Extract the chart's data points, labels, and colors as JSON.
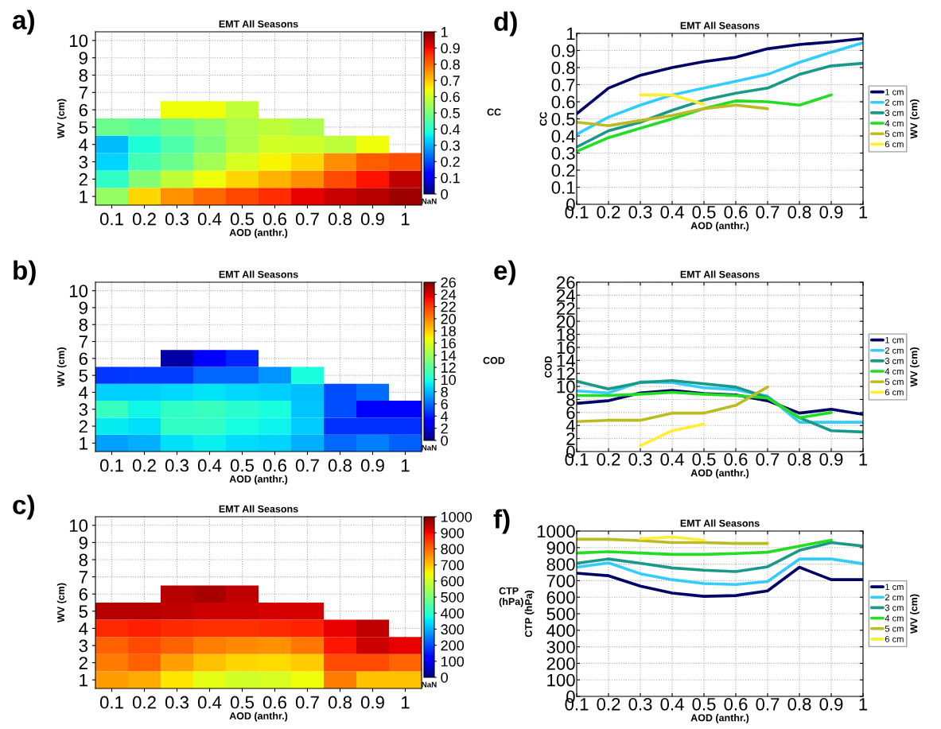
{
  "chart_data": [
    {
      "type": "heatmap",
      "title": "EMT All Seasons",
      "xlabel": "AOD (anthr.)",
      "ylabel": "WV (cm)",
      "clabel": "CC",
      "annotations": [
        "a)",
        "NaN"
      ],
      "grid": true,
      "categories": [
        "0.1",
        "0.2",
        "0.3",
        "0.4",
        "0.5",
        "0.6",
        "0.7",
        "0.8",
        "0.9",
        "1"
      ],
      "y_categories": [
        "10",
        "9",
        "8",
        "7",
        "6",
        "5",
        "4",
        "3",
        "2",
        "1"
      ],
      "cells": [
        [
          null,
          null,
          null,
          null,
          null,
          null,
          null,
          null,
          null,
          null
        ],
        [
          null,
          null,
          null,
          null,
          null,
          null,
          null,
          null,
          null,
          null
        ],
        [
          null,
          null,
          null,
          null,
          null,
          null,
          null,
          null,
          null,
          null
        ],
        [
          null,
          null,
          null,
          null,
          null,
          null,
          null,
          null,
          null,
          null
        ],
        [
          null,
          null,
          0.64,
          0.64,
          0.585,
          null,
          null,
          null,
          null,
          null
        ],
        [
          0.48,
          0.46,
          0.49,
          0.52,
          0.56,
          0.58,
          0.56,
          null,
          null,
          null
        ],
        [
          0.31,
          0.39,
          0.445,
          0.5,
          0.56,
          0.605,
          0.6,
          0.58,
          0.64,
          null
        ],
        [
          0.335,
          0.43,
          0.48,
          0.55,
          0.61,
          0.65,
          0.68,
          0.76,
          0.81,
          0.825
        ],
        [
          0.41,
          0.51,
          0.58,
          0.64,
          0.68,
          0.72,
          0.76,
          0.83,
          0.89,
          0.945
        ],
        [
          0.53,
          0.68,
          0.755,
          0.8,
          0.835,
          0.86,
          0.91,
          0.935,
          0.95,
          0.97
        ]
      ],
      "clim": [
        0,
        1
      ],
      "cticks": [
        0,
        0.1,
        0.2,
        0.3,
        0.4,
        0.5,
        0.6,
        0.7,
        0.8,
        0.9,
        1
      ]
    },
    {
      "type": "line",
      "title": "EMT All Seasons",
      "xlabel": "AOD (anthr.)",
      "ylabel": "CC",
      "legend_title": "WV (cm)",
      "annotations": [
        "d)"
      ],
      "grid": true,
      "legend": "right",
      "x": [
        0.1,
        0.2,
        0.3,
        0.4,
        0.5,
        0.6,
        0.7,
        0.8,
        0.9,
        1
      ],
      "xlim": [
        0.1,
        1
      ],
      "xticks": [
        0.1,
        0.2,
        0.3,
        0.4,
        0.5,
        0.6,
        0.7,
        0.8,
        0.9,
        1
      ],
      "ylim": [
        0,
        1
      ],
      "yticks": [
        0,
        0.1,
        0.2,
        0.3,
        0.4,
        0.5,
        0.6,
        0.7,
        0.8,
        0.9,
        1
      ],
      "series": [
        {
          "name": "1 cm",
          "color": "#000066",
          "values": [
            0.53,
            0.68,
            0.755,
            0.8,
            0.835,
            0.86,
            0.91,
            0.935,
            0.95,
            0.97
          ]
        },
        {
          "name": "2 cm",
          "color": "#33ccff",
          "values": [
            0.41,
            0.51,
            0.58,
            0.64,
            0.68,
            0.72,
            0.76,
            0.83,
            0.89,
            0.945
          ]
        },
        {
          "name": "3 cm",
          "color": "#1a9988",
          "values": [
            0.335,
            0.43,
            0.48,
            0.55,
            0.61,
            0.65,
            0.68,
            0.76,
            0.81,
            0.825
          ]
        },
        {
          "name": "4 cm",
          "color": "#22dd22",
          "values": [
            0.31,
            0.39,
            0.445,
            0.5,
            0.56,
            0.605,
            0.6,
            0.58,
            0.64,
            null
          ]
        },
        {
          "name": "5 cm",
          "color": "#bbbb22",
          "values": [
            0.48,
            0.46,
            0.49,
            0.52,
            0.56,
            0.58,
            0.56,
            null,
            null,
            null
          ]
        },
        {
          "name": "6 cm",
          "color": "#ffee33",
          "values": [
            null,
            null,
            0.64,
            0.64,
            0.585,
            null,
            null,
            null,
            null,
            null
          ]
        }
      ]
    },
    {
      "type": "heatmap",
      "title": "EMT All Seasons",
      "xlabel": "AOD (anthr.)",
      "ylabel": "WV (cm)",
      "clabel": "COD",
      "annotations": [
        "b)",
        "NaN"
      ],
      "grid": true,
      "categories": [
        "0.1",
        "0.2",
        "0.3",
        "0.4",
        "0.5",
        "0.6",
        "0.7",
        "0.8",
        "0.9",
        "1"
      ],
      "y_categories": [
        "10",
        "9",
        "8",
        "7",
        "6",
        "5",
        "4",
        "3",
        "2",
        "1"
      ],
      "cells": [
        [
          null,
          null,
          null,
          null,
          null,
          null,
          null,
          null,
          null,
          null
        ],
        [
          null,
          null,
          null,
          null,
          null,
          null,
          null,
          null,
          null,
          null
        ],
        [
          null,
          null,
          null,
          null,
          null,
          null,
          null,
          null,
          null,
          null
        ],
        [
          null,
          null,
          null,
          null,
          null,
          null,
          null,
          null,
          null,
          null
        ],
        [
          null,
          null,
          0.9,
          3.2,
          4.2,
          null,
          null,
          null,
          null,
          null
        ],
        [
          4.6,
          4.8,
          4.8,
          5.9,
          5.9,
          7.1,
          9.9,
          null,
          null,
          null
        ],
        [
          8.6,
          8.6,
          8.8,
          9.1,
          8.8,
          8.6,
          8.2,
          5.2,
          6.0,
          null
        ],
        [
          10.8,
          9.6,
          10.6,
          10.9,
          10.4,
          9.9,
          8.3,
          5.2,
          3.2,
          3.0
        ],
        [
          9.3,
          9.0,
          10.7,
          10.6,
          9.8,
          9.5,
          8.5,
          4.5,
          4.5,
          4.5
        ],
        [
          7.4,
          7.8,
          9.0,
          9.4,
          8.9,
          8.7,
          7.8,
          5.9,
          6.5,
          5.7
        ]
      ],
      "clim": [
        0,
        26
      ],
      "cticks": [
        0,
        2,
        4,
        6,
        8,
        10,
        12,
        14,
        16,
        18,
        20,
        22,
        24,
        26
      ]
    },
    {
      "type": "line",
      "title": "EMT All Seasons",
      "xlabel": "AOD (anthr.)",
      "ylabel": "COD",
      "legend_title": "WV (cm)",
      "annotations": [
        "e)"
      ],
      "grid": true,
      "legend": "right",
      "x": [
        0.1,
        0.2,
        0.3,
        0.4,
        0.5,
        0.6,
        0.7,
        0.8,
        0.9,
        1
      ],
      "xlim": [
        0.1,
        1
      ],
      "xticks": [
        0.1,
        0.2,
        0.3,
        0.4,
        0.5,
        0.6,
        0.7,
        0.8,
        0.9,
        1
      ],
      "ylim": [
        0,
        26
      ],
      "yticks": [
        0,
        2,
        4,
        6,
        8,
        10,
        12,
        14,
        16,
        18,
        20,
        22,
        24,
        26
      ],
      "series": [
        {
          "name": "1 cm",
          "color": "#000066",
          "values": [
            7.4,
            7.8,
            9.0,
            9.4,
            8.9,
            8.7,
            7.8,
            5.9,
            6.5,
            5.7
          ]
        },
        {
          "name": "2 cm",
          "color": "#33ccff",
          "values": [
            9.3,
            9.0,
            10.7,
            10.6,
            9.8,
            9.5,
            8.5,
            4.5,
            4.5,
            4.5
          ]
        },
        {
          "name": "3 cm",
          "color": "#1a9988",
          "values": [
            10.8,
            9.6,
            10.6,
            10.9,
            10.4,
            9.9,
            8.3,
            5.2,
            3.2,
            3.0
          ]
        },
        {
          "name": "4 cm",
          "color": "#22dd22",
          "values": [
            8.6,
            8.6,
            8.8,
            9.1,
            8.8,
            8.6,
            8.2,
            5.2,
            6.0,
            null
          ]
        },
        {
          "name": "5 cm",
          "color": "#bbbb22",
          "values": [
            4.6,
            4.8,
            4.8,
            5.9,
            5.9,
            7.1,
            9.9,
            null,
            null,
            null
          ]
        },
        {
          "name": "6 cm",
          "color": "#ffee33",
          "values": [
            null,
            null,
            0.9,
            3.2,
            4.2,
            null,
            null,
            null,
            null,
            null
          ]
        }
      ]
    },
    {
      "type": "heatmap",
      "title": "EMT All Seasons",
      "xlabel": "AOD (anthr.)",
      "ylabel": "WV (cm)",
      "clabel": "CTP\n(hPa)",
      "annotations": [
        "c)",
        "NaN"
      ],
      "grid": true,
      "categories": [
        "0.1",
        "0.2",
        "0.3",
        "0.4",
        "0.5",
        "0.6",
        "0.7",
        "0.8",
        "0.9",
        "1"
      ],
      "y_categories": [
        "10",
        "9",
        "8",
        "7",
        "6",
        "5",
        "4",
        "3",
        "2",
        "1"
      ],
      "cells": [
        [
          null,
          null,
          null,
          null,
          null,
          null,
          null,
          null,
          null,
          null
        ],
        [
          null,
          null,
          null,
          null,
          null,
          null,
          null,
          null,
          null,
          null
        ],
        [
          null,
          null,
          null,
          null,
          null,
          null,
          null,
          null,
          null,
          null
        ],
        [
          null,
          null,
          null,
          null,
          null,
          null,
          null,
          null,
          null,
          null
        ],
        [
          null,
          null,
          953,
          964,
          945,
          null,
          null,
          null,
          null,
          null
        ],
        [
          950,
          950,
          942,
          930,
          930,
          925,
          925,
          null,
          null,
          null
        ],
        [
          867,
          875,
          867,
          859,
          859,
          864,
          872,
          909,
          945,
          null
        ],
        [
          805,
          831,
          805,
          777,
          763,
          755,
          784,
          883,
          930,
          909
        ],
        [
          781,
          808,
          742,
          706,
          683,
          677,
          695,
          831,
          831,
          802
        ],
        [
          745,
          730,
          667,
          625,
          605,
          610,
          638,
          781,
          706,
          706
        ]
      ],
      "clim": [
        0,
        1000
      ],
      "cticks": [
        0,
        100,
        200,
        300,
        400,
        500,
        600,
        700,
        800,
        900,
        1000
      ]
    },
    {
      "type": "line",
      "title": "EMT All Seasons",
      "xlabel": "AOD (anthr.)",
      "ylabel": "CTP (hPa)",
      "legend_title": "WV (cm)",
      "annotations": [
        "f)"
      ],
      "grid": true,
      "legend": "right",
      "x": [
        0.1,
        0.2,
        0.3,
        0.4,
        0.5,
        0.6,
        0.7,
        0.8,
        0.9,
        1
      ],
      "xlim": [
        0.1,
        1
      ],
      "xticks": [
        0.1,
        0.2,
        0.3,
        0.4,
        0.5,
        0.6,
        0.7,
        0.8,
        0.9,
        1
      ],
      "ylim": [
        0,
        1000
      ],
      "yticks": [
        0,
        100,
        200,
        300,
        400,
        500,
        600,
        700,
        800,
        900,
        1000
      ],
      "series": [
        {
          "name": "1 cm",
          "color": "#000066",
          "values": [
            745,
            730,
            667,
            625,
            605,
            610,
            638,
            781,
            706,
            706
          ]
        },
        {
          "name": "2 cm",
          "color": "#33ccff",
          "values": [
            781,
            808,
            742,
            706,
            683,
            677,
            695,
            831,
            831,
            802
          ]
        },
        {
          "name": "3 cm",
          "color": "#1a9988",
          "values": [
            805,
            831,
            805,
            777,
            763,
            755,
            784,
            883,
            930,
            909
          ]
        },
        {
          "name": "4 cm",
          "color": "#22dd22",
          "values": [
            867,
            875,
            867,
            859,
            859,
            864,
            872,
            909,
            945,
            null
          ]
        },
        {
          "name": "5 cm",
          "color": "#bbbb22",
          "values": [
            950,
            950,
            942,
            930,
            930,
            925,
            925,
            null,
            null,
            null
          ]
        },
        {
          "name": "6 cm",
          "color": "#ffee33",
          "values": [
            null,
            null,
            953,
            964,
            945,
            null,
            null,
            null,
            null,
            null
          ]
        }
      ]
    }
  ]
}
